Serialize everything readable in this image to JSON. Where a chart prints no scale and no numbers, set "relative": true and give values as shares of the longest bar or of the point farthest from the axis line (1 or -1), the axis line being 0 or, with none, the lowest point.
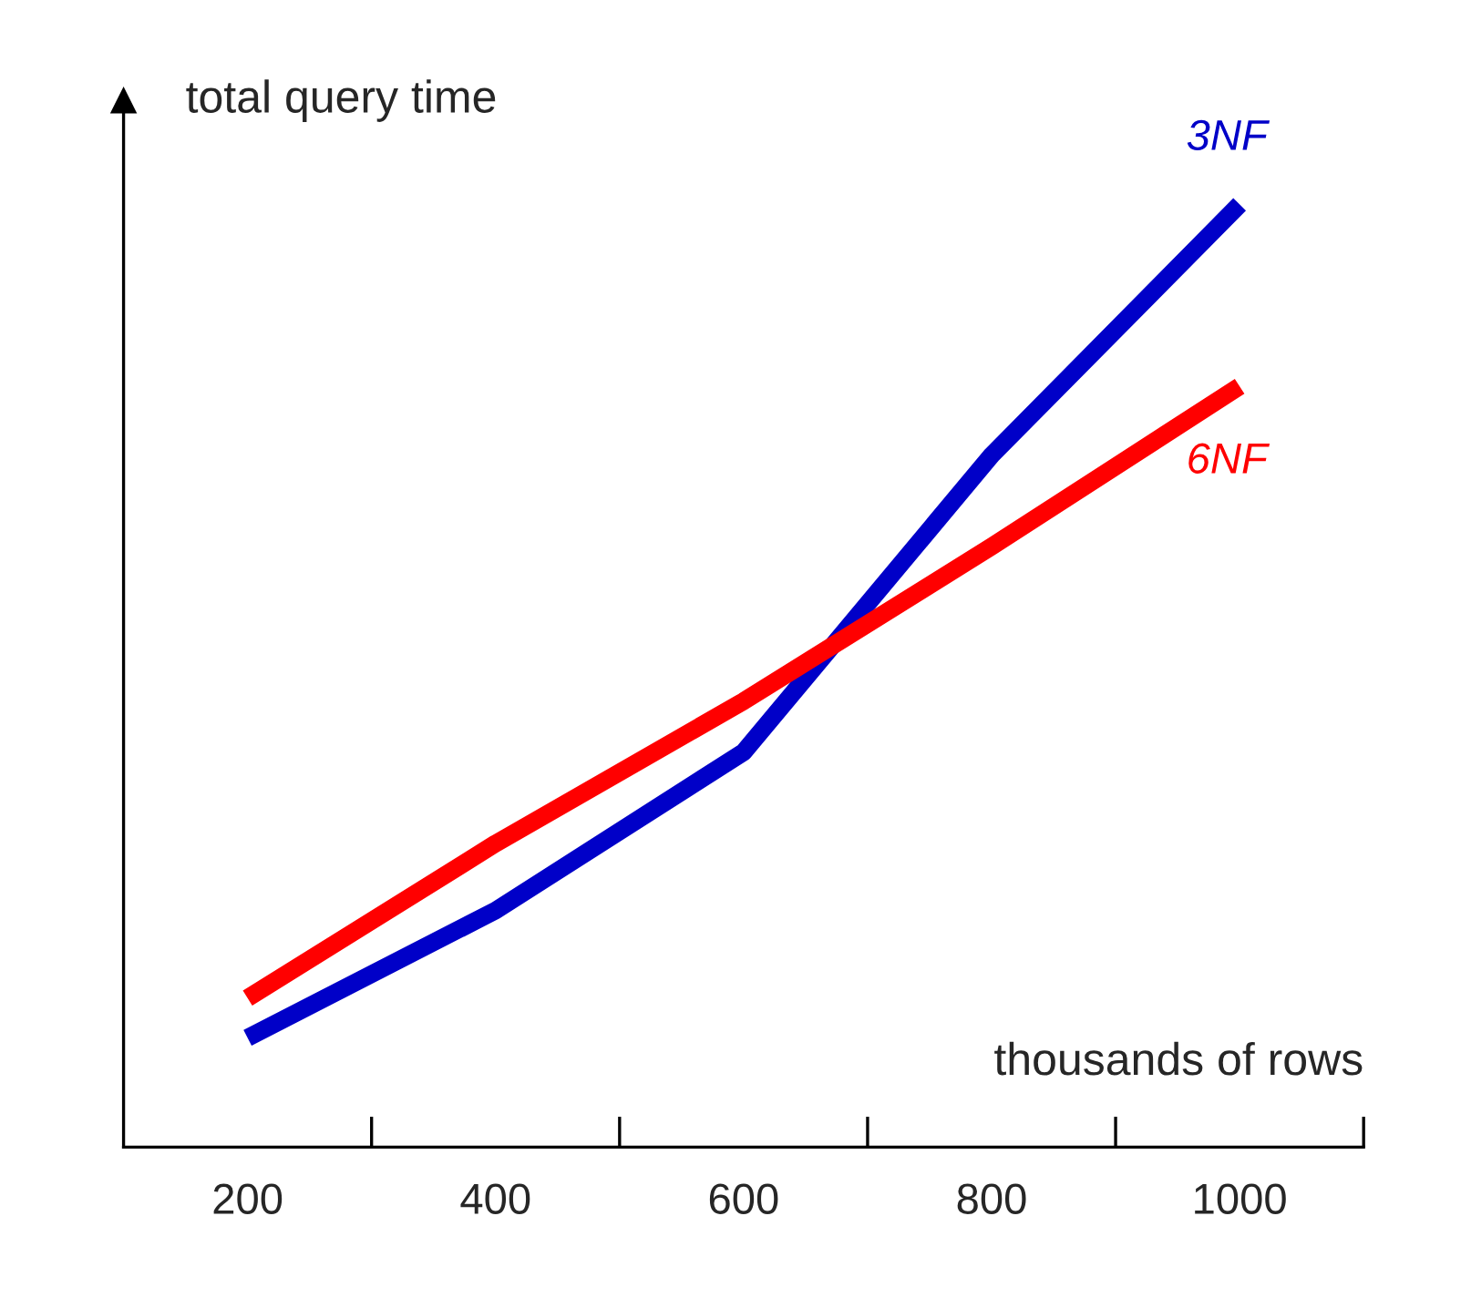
{
  "chart_data": {
    "type": "line",
    "relative": true,
    "xlabel": "thousands of rows",
    "ylabel": "total query time",
    "legend": false,
    "grid": false,
    "categories": [
      "200",
      "400",
      "600",
      "800",
      "1000"
    ],
    "series": [
      {
        "name": "3NF",
        "color": "#0000c8",
        "values": [
          0.116,
          0.251,
          0.419,
          0.734,
          1
        ]
      },
      {
        "name": "6NF",
        "color": "#ff0000",
        "values": [
          0.158,
          0.322,
          0.473,
          0.637,
          0.807
        ]
      }
    ]
  }
}
